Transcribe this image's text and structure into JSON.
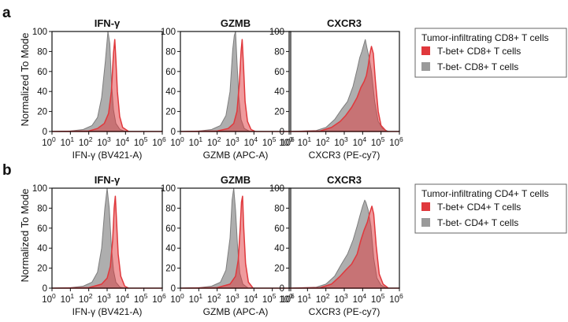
{
  "figure": {
    "y_axis_label": "Normalized To Mode"
  },
  "panels": [
    {
      "letter": "a",
      "legend": {
        "title": "Tumor-infiltrating CD8+ T cells",
        "entries": [
          {
            "label": "T-bet+ CD8+ T cells",
            "color": "#e0383c"
          },
          {
            "label": "T-bet- CD8+ T cells",
            "color": "#9a9a9a"
          }
        ]
      }
    },
    {
      "letter": "b",
      "legend": {
        "title": "Tumor-infiltrating CD4+ T cells",
        "entries": [
          {
            "label": "T-bet+ CD4+ T cells",
            "color": "#e0383c"
          },
          {
            "label": "T-bet- CD4+ T cells",
            "color": "#9a9a9a"
          }
        ]
      }
    }
  ],
  "chart_data": [
    {
      "type": "area",
      "panel": "a",
      "title": "IFN-γ",
      "xlabel": "IFN-γ (BV421-A)",
      "ylabel": "Normalized To Mode",
      "xscale": "log",
      "xlim": [
        1,
        1000000
      ],
      "ylim": [
        0,
        100
      ],
      "xticks": [
        "10^0",
        "10^1",
        "10^2",
        "10^3",
        "10^4",
        "10^5",
        "10^6"
      ],
      "yticks": [
        0,
        20,
        40,
        60,
        80,
        100
      ],
      "series": [
        {
          "name": "T-bet- CD8+ T cells",
          "color": "#9a9a9a",
          "points": [
            [
              1,
              0
            ],
            [
              10,
              0.5
            ],
            [
              50,
              2
            ],
            [
              150,
              6
            ],
            [
              300,
              14
            ],
            [
              500,
              34
            ],
            [
              800,
              70
            ],
            [
              1100,
              100
            ],
            [
              1400,
              88
            ],
            [
              1700,
              50
            ],
            [
              2200,
              22
            ],
            [
              3000,
              8
            ],
            [
              5000,
              2
            ],
            [
              10000,
              0
            ],
            [
              1000000,
              0
            ]
          ]
        },
        {
          "name": "T-bet+ CD8+ T cells",
          "color": "#e0383c",
          "points": [
            [
              1,
              0
            ],
            [
              100,
              0.5
            ],
            [
              300,
              3
            ],
            [
              700,
              8
            ],
            [
              1200,
              18
            ],
            [
              1700,
              40
            ],
            [
              2200,
              78
            ],
            [
              2600,
              92
            ],
            [
              3000,
              72
            ],
            [
              3600,
              40
            ],
            [
              4800,
              15
            ],
            [
              7000,
              4
            ],
            [
              15000,
              0
            ],
            [
              1000000,
              0
            ]
          ]
        }
      ]
    },
    {
      "type": "area",
      "panel": "a",
      "title": "GZMB",
      "xlabel": "GZMB (APC-A)",
      "ylabel": "Normalized To Mode",
      "xscale": "log",
      "xlim": [
        1,
        1000000
      ],
      "ylim": [
        0,
        100
      ],
      "xticks": [
        "10^0",
        "10^1",
        "10^2",
        "10^3",
        "10^4",
        "10^5",
        "10^6"
      ],
      "yticks": [
        0,
        20,
        40,
        60,
        80,
        100
      ],
      "series": [
        {
          "name": "T-bet- CD8+ T cells",
          "color": "#9a9a9a",
          "points": [
            [
              1,
              0
            ],
            [
              10,
              0.5
            ],
            [
              50,
              2
            ],
            [
              150,
              6
            ],
            [
              300,
              16
            ],
            [
              500,
              40
            ],
            [
              700,
              82
            ],
            [
              850,
              96
            ],
            [
              1000,
              100
            ],
            [
              1200,
              70
            ],
            [
              1500,
              35
            ],
            [
              2000,
              12
            ],
            [
              3000,
              3
            ],
            [
              6000,
              0
            ],
            [
              1000000,
              0
            ]
          ]
        },
        {
          "name": "T-bet+ CD8+ T cells",
          "color": "#e0383c",
          "points": [
            [
              1,
              0
            ],
            [
              100,
              0.5
            ],
            [
              400,
              3
            ],
            [
              800,
              8
            ],
            [
              1200,
              20
            ],
            [
              1600,
              48
            ],
            [
              2000,
              80
            ],
            [
              2300,
              92
            ],
            [
              2700,
              66
            ],
            [
              3300,
              30
            ],
            [
              4500,
              10
            ],
            [
              7000,
              2
            ],
            [
              12000,
              0
            ],
            [
              1000000,
              0
            ]
          ]
        }
      ]
    },
    {
      "type": "area",
      "panel": "a",
      "title": "CXCR3",
      "xlabel": "CXCR3 (PE-cy7)",
      "ylabel": "Normalized To Mode",
      "xscale": "log",
      "xlim": [
        1,
        1000000
      ],
      "ylim": [
        0,
        100
      ],
      "xticks": [
        "10^0",
        "10^1",
        "10^2",
        "10^3",
        "10^4",
        "10^5",
        "10^6"
      ],
      "yticks": [
        0,
        20,
        40,
        60,
        80,
        100
      ],
      "series": [
        {
          "name": "T-bet- CD8+ T cells",
          "color": "#9a9a9a",
          "points": [
            [
              1,
              0
            ],
            [
              30,
              1
            ],
            [
              100,
              4
            ],
            [
              300,
              12
            ],
            [
              700,
              22
            ],
            [
              1500,
              30
            ],
            [
              3000,
              45
            ],
            [
              5000,
              62
            ],
            [
              7000,
              74
            ],
            [
              9000,
              80
            ],
            [
              12000,
              88
            ],
            [
              14000,
              92
            ],
            [
              17000,
              84
            ],
            [
              22000,
              75
            ],
            [
              30000,
              60
            ],
            [
              45000,
              30
            ],
            [
              70000,
              10
            ],
            [
              120000,
              3
            ],
            [
              250000,
              0
            ],
            [
              1000000,
              0
            ]
          ]
        },
        {
          "name": "T-bet+ CD8+ T cells",
          "color": "#e0383c",
          "points": [
            [
              1,
              0
            ],
            [
              50,
              0.5
            ],
            [
              200,
              4
            ],
            [
              600,
              10
            ],
            [
              1200,
              16
            ],
            [
              2500,
              24
            ],
            [
              5000,
              34
            ],
            [
              8000,
              44
            ],
            [
              12000,
              50
            ],
            [
              16000,
              56
            ],
            [
              20000,
              66
            ],
            [
              25000,
              78
            ],
            [
              30000,
              85
            ],
            [
              38000,
              78
            ],
            [
              50000,
              50
            ],
            [
              70000,
              20
            ],
            [
              100000,
              6
            ],
            [
              200000,
              0
            ],
            [
              1000000,
              0
            ]
          ]
        }
      ]
    },
    {
      "type": "area",
      "panel": "b",
      "title": "IFN-γ",
      "xlabel": "IFN-γ (BV421-A)",
      "ylabel": "Normalized To Mode",
      "xscale": "log",
      "xlim": [
        1,
        1000000
      ],
      "ylim": [
        0,
        100
      ],
      "xticks": [
        "10^0",
        "10^1",
        "10^2",
        "10^3",
        "10^4",
        "10^5",
        "10^6"
      ],
      "yticks": [
        0,
        20,
        40,
        60,
        80,
        100
      ],
      "series": [
        {
          "name": "T-bet- CD4+ T cells",
          "color": "#9a9a9a",
          "points": [
            [
              1,
              0
            ],
            [
              10,
              0.5
            ],
            [
              50,
              2
            ],
            [
              150,
              6
            ],
            [
              300,
              16
            ],
            [
              500,
              40
            ],
            [
              750,
              80
            ],
            [
              1000,
              100
            ],
            [
              1300,
              80
            ],
            [
              1700,
              42
            ],
            [
              2200,
              18
            ],
            [
              3000,
              6
            ],
            [
              5000,
              1
            ],
            [
              10000,
              0
            ],
            [
              1000000,
              0
            ]
          ]
        },
        {
          "name": "T-bet+ CD4+ T cells",
          "color": "#e0383c",
          "points": [
            [
              1,
              0
            ],
            [
              100,
              0.5
            ],
            [
              500,
              4
            ],
            [
              1000,
              10
            ],
            [
              1500,
              22
            ],
            [
              2000,
              48
            ],
            [
              2400,
              80
            ],
            [
              2800,
              92
            ],
            [
              3200,
              70
            ],
            [
              4000,
              34
            ],
            [
              5500,
              12
            ],
            [
              9000,
              2
            ],
            [
              15000,
              0
            ],
            [
              1000000,
              0
            ]
          ]
        }
      ]
    },
    {
      "type": "area",
      "panel": "b",
      "title": "GZMB",
      "xlabel": "GZMB (APC-A)",
      "ylabel": "Normalized To Mode",
      "xscale": "log",
      "xlim": [
        1,
        1000000
      ],
      "ylim": [
        0,
        100
      ],
      "xticks": [
        "10^0",
        "10^1",
        "10^2",
        "10^3",
        "10^4",
        "10^5",
        "10^6"
      ],
      "yticks": [
        0,
        20,
        40,
        60,
        80,
        100
      ],
      "series": [
        {
          "name": "T-bet- CD4+ T cells",
          "color": "#9a9a9a",
          "points": [
            [
              1,
              0
            ],
            [
              10,
              0.5
            ],
            [
              50,
              2
            ],
            [
              150,
              6
            ],
            [
              300,
              18
            ],
            [
              500,
              50
            ],
            [
              650,
              88
            ],
            [
              800,
              100
            ],
            [
              1000,
              78
            ],
            [
              1300,
              40
            ],
            [
              1700,
              15
            ],
            [
              2500,
              4
            ],
            [
              5000,
              0
            ],
            [
              1000000,
              0
            ]
          ]
        },
        {
          "name": "T-bet+ CD4+ T cells",
          "color": "#e0383c",
          "points": [
            [
              1,
              0
            ],
            [
              100,
              0.5
            ],
            [
              500,
              4
            ],
            [
              1000,
              12
            ],
            [
              1400,
              28
            ],
            [
              1800,
              62
            ],
            [
              2100,
              86
            ],
            [
              2400,
              92
            ],
            [
              2800,
              60
            ],
            [
              3500,
              25
            ],
            [
              5000,
              6
            ],
            [
              9000,
              0
            ],
            [
              1000000,
              0
            ]
          ]
        }
      ]
    },
    {
      "type": "area",
      "panel": "b",
      "title": "CXCR3",
      "xlabel": "CXCR3 (PE-cy7)",
      "ylabel": "Normalized To Mode",
      "xscale": "log",
      "xlim": [
        1,
        1000000
      ],
      "ylim": [
        0,
        100
      ],
      "xticks": [
        "10^0",
        "10^1",
        "10^2",
        "10^3",
        "10^4",
        "10^5",
        "10^6"
      ],
      "yticks": [
        0,
        20,
        40,
        60,
        80,
        100
      ],
      "series": [
        {
          "name": "T-bet- CD4+ T cells",
          "color": "#9a9a9a",
          "points": [
            [
              1,
              0
            ],
            [
              30,
              1
            ],
            [
              100,
              4
            ],
            [
              300,
              12
            ],
            [
              700,
              24
            ],
            [
              1500,
              34
            ],
            [
              3000,
              48
            ],
            [
              5000,
              62
            ],
            [
              7000,
              72
            ],
            [
              10000,
              82
            ],
            [
              13000,
              88
            ],
            [
              15000,
              86
            ],
            [
              20000,
              78
            ],
            [
              28000,
              62
            ],
            [
              40000,
              30
            ],
            [
              60000,
              10
            ],
            [
              100000,
              3
            ],
            [
              200000,
              0
            ],
            [
              1000000,
              0
            ]
          ]
        },
        {
          "name": "T-bet+ CD4+ T cells",
          "color": "#e0383c",
          "points": [
            [
              1,
              0
            ],
            [
              50,
              0.5
            ],
            [
              200,
              4
            ],
            [
              600,
              12
            ],
            [
              1200,
              18
            ],
            [
              2500,
              24
            ],
            [
              5000,
              34
            ],
            [
              8000,
              48
            ],
            [
              12000,
              58
            ],
            [
              18000,
              66
            ],
            [
              25000,
              76
            ],
            [
              32000,
              82
            ],
            [
              40000,
              74
            ],
            [
              55000,
              42
            ],
            [
              80000,
              14
            ],
            [
              130000,
              4
            ],
            [
              250000,
              0
            ],
            [
              1000000,
              0
            ]
          ]
        }
      ]
    }
  ]
}
